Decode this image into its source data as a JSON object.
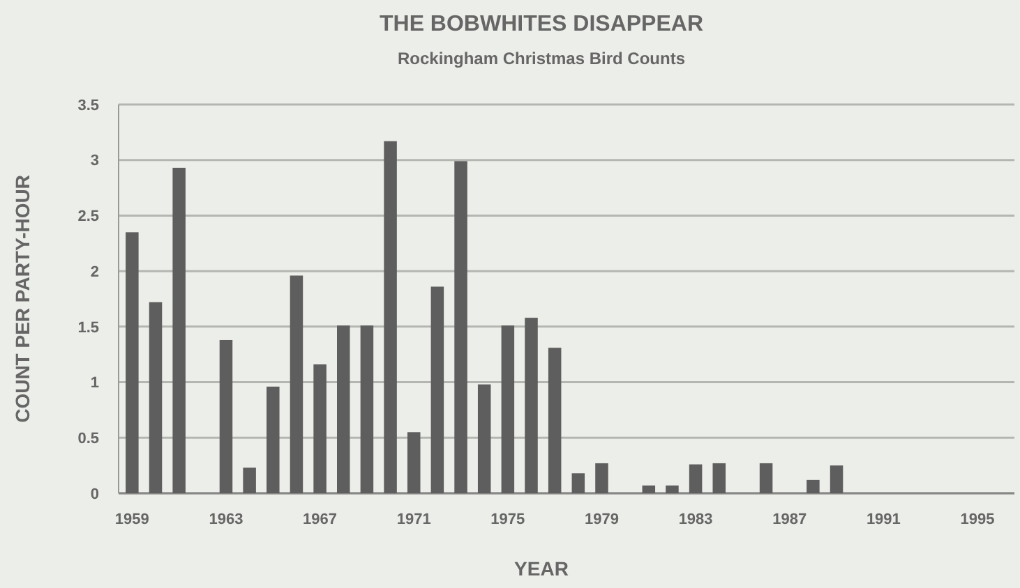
{
  "chart_data": {
    "type": "bar",
    "title": "THE BOBWHITES DISAPPEAR",
    "subtitle": "Rockingham Christmas Bird Counts",
    "xlabel": "YEAR",
    "ylabel": "COUNT PER PARTY-HOUR",
    "categories": [
      "1959",
      null,
      null,
      null,
      "1963",
      null,
      null,
      null,
      "1967",
      null,
      null,
      null,
      "1971",
      null,
      null,
      null,
      "1975",
      null,
      null,
      null,
      "1979",
      null,
      null,
      null,
      "1983",
      null,
      null,
      null,
      "1987",
      null,
      null,
      null,
      "1991",
      null,
      null,
      null,
      "1995",
      null
    ],
    "values": [
      2.35,
      1.72,
      2.93,
      0,
      1.38,
      0.23,
      0.96,
      1.96,
      1.16,
      1.51,
      1.51,
      3.17,
      0.55,
      1.86,
      2.99,
      0.98,
      1.51,
      1.58,
      1.31,
      0.18,
      0.27,
      0,
      0.07,
      0.07,
      0.26,
      0.27,
      0,
      0.27,
      0,
      0.12,
      0.25,
      0,
      0,
      0,
      0,
      0,
      0,
      0
    ],
    "color": "#5e5e5e",
    "ylim": [
      0,
      3.5
    ],
    "yticks": [
      0,
      0.5,
      1,
      1.5,
      2,
      2.5,
      3,
      3.5
    ],
    "grid": "y"
  }
}
